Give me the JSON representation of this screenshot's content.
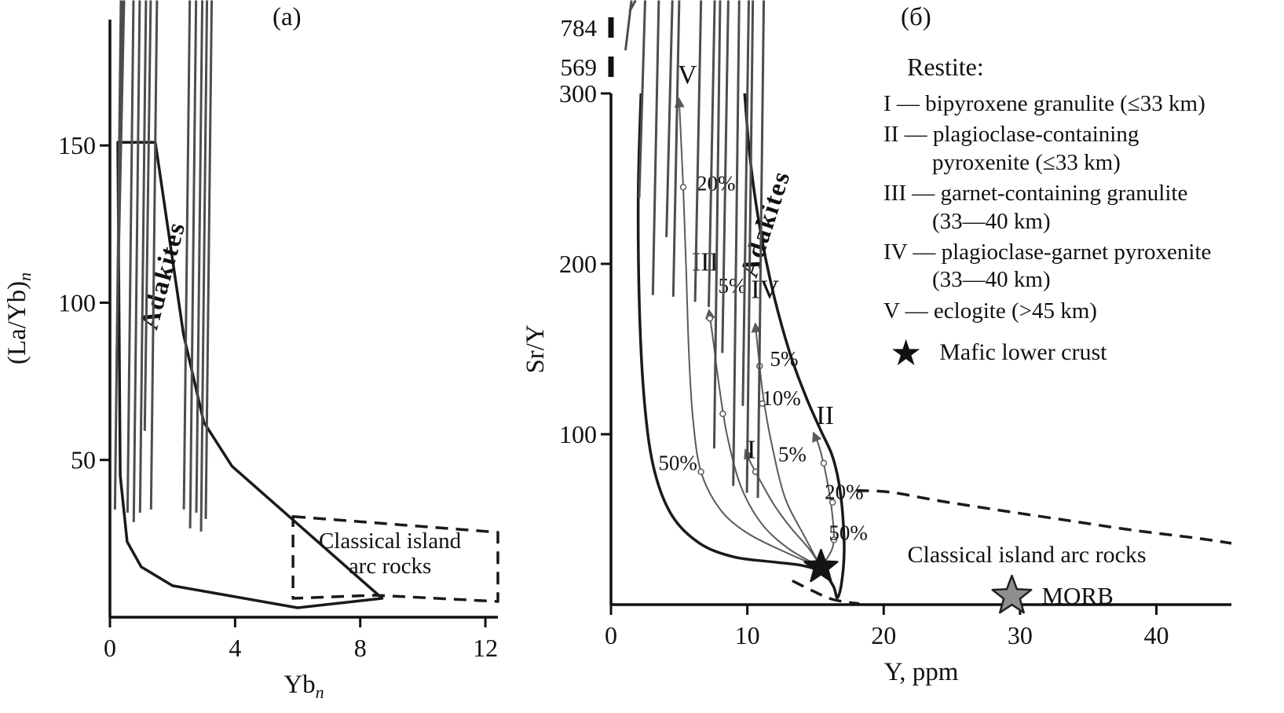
{
  "colors": {
    "background": "#ffffff",
    "axis": "#111111",
    "marker_fill": "#a3a3a3",
    "marker_stroke": "#4d4d4d",
    "field_outline": "#1a1a1a",
    "curve": "#5a5a5a"
  },
  "chart_data": [
    {
      "id": "a",
      "type": "scatter",
      "title": "(а)",
      "xlabel": {
        "main": "Yb",
        "sub": "n"
      },
      "ylabel": {
        "main": "(La/Yb)",
        "sub": "n"
      },
      "xlim": [
        0,
        12.4
      ],
      "ylim": [
        0,
        190
      ],
      "xticks": [
        0,
        4,
        8,
        12
      ],
      "yticks": [
        50,
        100,
        150
      ],
      "points": [
        [
          0.45,
          101
        ],
        [
          0.4,
          72
        ],
        [
          1.3,
          54
        ],
        [
          0.35,
          29
        ],
        [
          0.75,
          28
        ],
        [
          1.15,
          28
        ],
        [
          1.5,
          29
        ],
        [
          0.95,
          25
        ],
        [
          2.55,
          29
        ],
        [
          2.95,
          28
        ],
        [
          3.25,
          26
        ],
        [
          2.75,
          23
        ],
        [
          3.1,
          22
        ]
      ],
      "fields": [
        {
          "name": "adakites",
          "line": "solid",
          "closed": true,
          "smooth": false,
          "label": "Adakites",
          "label_pos": [
            1.95,
            108
          ],
          "label_rotation": -75,
          "outline": [
            [
              0.25,
              151
            ],
            [
              1.45,
              151
            ],
            [
              2.35,
              90
            ],
            [
              3.0,
              62
            ],
            [
              3.9,
              48
            ],
            [
              8.7,
              6
            ],
            [
              6.0,
              3
            ],
            [
              2.0,
              10
            ],
            [
              1.0,
              16
            ],
            [
              0.55,
              24
            ],
            [
              0.33,
              45
            ],
            [
              0.25,
              151
            ]
          ]
        },
        {
          "name": "classical-island-arc",
          "line": "dashed",
          "closed": true,
          "smooth": false,
          "label_lines": [
            "Classical island",
            "arc rocks"
          ],
          "label_pos": [
            8.95,
            22
          ],
          "outline": [
            [
              5.85,
              32
            ],
            [
              12.4,
              27
            ],
            [
              12.4,
              5
            ],
            [
              8.5,
              7
            ],
            [
              5.85,
              6
            ]
          ]
        }
      ]
    },
    {
      "id": "b",
      "type": "scatter",
      "title": "(б)",
      "xlabel": {
        "main": "Y, ppm",
        "sub": ""
      },
      "ylabel": {
        "main": "Sr/Y",
        "sub": ""
      },
      "xlim": [
        0,
        45.5
      ],
      "ylim": [
        0,
        300
      ],
      "xticks": [
        0,
        10,
        20,
        30,
        40
      ],
      "yticks": [
        100,
        200,
        300
      ],
      "broken_axis_labels": [
        {
          "value": "784",
          "point_x": 1.8
        },
        {
          "value": "569",
          "point_x": 1.5
        }
      ],
      "points": [
        [
          2.5,
          229
        ],
        [
          4.5,
          206
        ],
        [
          3.5,
          172
        ],
        [
          5.0,
          171
        ],
        [
          6.6,
          168
        ],
        [
          7.6,
          165
        ],
        [
          8.6,
          138
        ],
        [
          10.1,
          107
        ],
        [
          8.0,
          82
        ],
        [
          9.4,
          60
        ],
        [
          10.4,
          56
        ],
        [
          11.2,
          53
        ]
      ],
      "fields": [
        {
          "name": "adakites",
          "line": "solid",
          "closed": false,
          "smooth": true,
          "label": "Adakites",
          "label_pos": [
            11.9,
            222
          ],
          "label_rotation": -72,
          "outline": [
            [
              2.2,
              300
            ],
            [
              2.0,
              240
            ],
            [
              2.1,
              170
            ],
            [
              2.5,
              115
            ],
            [
              3.2,
              78
            ],
            [
              4.5,
              52
            ],
            [
              6.5,
              36
            ],
            [
              9.0,
              28
            ],
            [
              12.0,
              25
            ],
            [
              14.0,
              23
            ],
            [
              15.5,
              19
            ],
            [
              16.3,
              11
            ],
            [
              16.6,
              4
            ],
            [
              16.9,
              12
            ],
            [
              17.1,
              30
            ],
            [
              17.0,
              52
            ],
            [
              16.7,
              72
            ],
            [
              16.2,
              88
            ],
            [
              15.4,
              102
            ],
            [
              14.3,
              122
            ],
            [
              13.1,
              148
            ],
            [
              11.9,
              183
            ],
            [
              10.9,
              222
            ],
            [
              10.2,
              262
            ],
            [
              9.8,
              300
            ]
          ]
        },
        {
          "name": "classical-island-arc-upper",
          "line": "dashed",
          "closed": false,
          "smooth": true,
          "outline": [
            [
              18.0,
              67
            ],
            [
              20.5,
              66
            ],
            [
              24,
              61
            ],
            [
              28,
              56
            ],
            [
              33,
              50
            ],
            [
              38,
              44
            ],
            [
              43,
              39
            ],
            [
              45.5,
              36
            ]
          ]
        },
        {
          "name": "classical-island-arc-lower",
          "line": "dashed",
          "closed": false,
          "smooth": true,
          "outline": [
            [
              13.3,
              14
            ],
            [
              14.8,
              8
            ],
            [
              16.3,
              3
            ],
            [
              18.2,
              0.5
            ]
          ]
        }
      ],
      "curves": [
        {
          "name": "V",
          "label": "V",
          "label_pos": [
            5.6,
            306
          ],
          "points": [
            [
              15.4,
              22
            ],
            [
              13,
              30
            ],
            [
              10,
              42
            ],
            [
              8,
              56
            ],
            [
              6.6,
              78
            ],
            [
              6.0,
              110
            ],
            [
              5.7,
              150
            ],
            [
              5.5,
              200
            ],
            [
              5.3,
              245
            ],
            [
              5.1,
              280
            ],
            [
              5.0,
              296
            ]
          ],
          "ticks": [
            [
              6.6,
              78
            ],
            [
              5.3,
              245
            ]
          ]
        },
        {
          "name": "III",
          "label": "III",
          "label_pos": [
            6.9,
            196
          ],
          "points": [
            [
              15.4,
              22
            ],
            [
              13,
              33
            ],
            [
              11,
              48
            ],
            [
              9.5,
              70
            ],
            [
              8.5,
              100
            ],
            [
              7.9,
              130
            ],
            [
              7.5,
              155
            ],
            [
              7.2,
              172
            ]
          ],
          "ticks": [
            [
              8.2,
              112
            ],
            [
              7.25,
              168
            ]
          ]
        },
        {
          "name": "IV",
          "label": "IV",
          "label_pos": [
            11.3,
            180
          ],
          "points": [
            [
              15.4,
              22
            ],
            [
              14.2,
              40
            ],
            [
              12.8,
              62
            ],
            [
              11.9,
              90
            ],
            [
              11.2,
              120
            ],
            [
              10.8,
              148
            ],
            [
              10.6,
              164
            ]
          ],
          "ticks": [
            [
              11.1,
              118
            ],
            [
              10.9,
              140
            ]
          ]
        },
        {
          "name": "I",
          "label": "I",
          "label_pos": [
            10.3,
            86
          ],
          "points": [
            [
              15.4,
              22
            ],
            [
              14.5,
              33
            ],
            [
              13.2,
              45
            ],
            [
              12.0,
              58
            ],
            [
              11.0,
              72
            ],
            [
              10.2,
              84
            ],
            [
              9.9,
              90
            ]
          ],
          "ticks": [
            [
              10.6,
              78
            ]
          ]
        },
        {
          "name": "II",
          "label": "II",
          "label_pos": [
            15.7,
            106
          ],
          "points": [
            [
              15.4,
              22
            ],
            [
              16.3,
              35
            ],
            [
              16.2,
              55
            ],
            [
              15.8,
              75
            ],
            [
              15.3,
              92
            ],
            [
              14.9,
              100
            ]
          ],
          "ticks": [
            [
              16.35,
              38
            ],
            [
              16.25,
              60
            ],
            [
              15.6,
              83
            ]
          ]
        }
      ],
      "percent_labels": [
        {
          "text": "20%",
          "pos": [
            7.7,
            243
          ]
        },
        {
          "text": "5%",
          "pos": [
            8.9,
            183
          ]
        },
        {
          "text": "5%",
          "pos": [
            12.7,
            140
          ]
        },
        {
          "text": "10%",
          "pos": [
            12.5,
            117
          ]
        },
        {
          "text": "50%",
          "pos": [
            4.9,
            79
          ]
        },
        {
          "text": "5%",
          "pos": [
            13.3,
            84
          ]
        },
        {
          "text": "20%",
          "pos": [
            17.1,
            62
          ]
        },
        {
          "text": "50%",
          "pos": [
            17.4,
            38
          ]
        }
      ],
      "stars": [
        {
          "name": "mafic-lower-crust",
          "x": 15.4,
          "y": 22,
          "fill": "#141414",
          "stroke": "#141414",
          "size": 22,
          "label": ""
        },
        {
          "name": "morb",
          "x": 29.4,
          "y": 5,
          "fill": "#8f8f8f",
          "stroke": "#222222",
          "size": 26,
          "label": "MORB"
        }
      ],
      "annotations": [
        {
          "text": "Classical island arc rocks",
          "pos": [
            30.5,
            25
          ]
        }
      ]
    }
  ],
  "legend": {
    "title": "Restite:",
    "items": [
      {
        "label": "I — bipyroxene granulite (≤33 km)"
      },
      {
        "label": "II — plagioclase-containing pyroxenite (≤33 km)"
      },
      {
        "label": "III — garnet-containing granulite (33—40 km)"
      },
      {
        "label": "IV — plagioclase-garnet pyroxenite (33—40 km)"
      },
      {
        "label": "V — eclogite (>45 km)"
      }
    ],
    "star_item": {
      "label": "Mafic lower crust"
    }
  }
}
